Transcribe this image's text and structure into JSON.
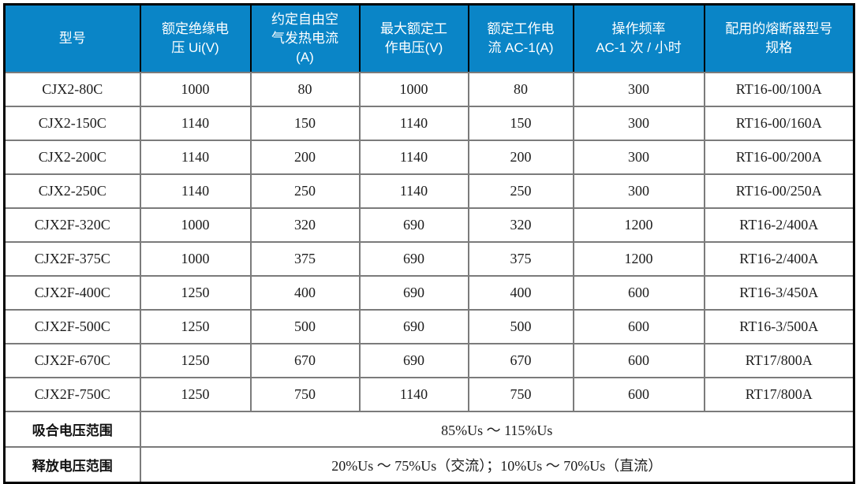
{
  "colors": {
    "header_bg": "#0a85c7",
    "header_text": "#ffffff",
    "body_text": "#1c1c1c",
    "grid_line": "#7b7b7b",
    "outer_border": "#000000"
  },
  "table": {
    "columns": [
      {
        "label": "型号"
      },
      {
        "label": "额定绝缘电\n压 Ui(V)"
      },
      {
        "label": "约定自由空\n气发热电流\n(A)"
      },
      {
        "label": "最大额定工\n作电压(V)"
      },
      {
        "label": "额定工作电\n流 AC-1(A)"
      },
      {
        "label": "操作频率\nAC-1 次 / 小时"
      },
      {
        "label": "配用的熔断器型号\n规格"
      }
    ],
    "rows": [
      {
        "model": "CJX2-80C",
        "values": [
          "1000",
          "80",
          "1000",
          "80",
          "300",
          "RT16-00/100A"
        ]
      },
      {
        "model": "CJX2-150C",
        "values": [
          "1140",
          "150",
          "1140",
          "150",
          "300",
          "RT16-00/160A"
        ]
      },
      {
        "model": "CJX2-200C",
        "values": [
          "1140",
          "200",
          "1140",
          "200",
          "300",
          "RT16-00/200A"
        ]
      },
      {
        "model": "CJX2-250C",
        "values": [
          "1140",
          "250",
          "1140",
          "250",
          "300",
          "RT16-00/250A"
        ]
      },
      {
        "model": "CJX2F-320C",
        "values": [
          "1000",
          "320",
          "690",
          "320",
          "1200",
          "RT16-2/400A"
        ]
      },
      {
        "model": "CJX2F-375C",
        "values": [
          "1000",
          "375",
          "690",
          "375",
          "1200",
          "RT16-2/400A"
        ]
      },
      {
        "model": "CJX2F-400C",
        "values": [
          "1250",
          "400",
          "690",
          "400",
          "600",
          "RT16-3/450A"
        ]
      },
      {
        "model": "CJX2F-500C",
        "values": [
          "1250",
          "500",
          "690",
          "500",
          "600",
          "RT16-3/500A"
        ]
      },
      {
        "model": "CJX2F-670C",
        "values": [
          "1250",
          "670",
          "690",
          "670",
          "600",
          "RT17/800A"
        ]
      },
      {
        "model": "CJX2F-750C",
        "values": [
          "1250",
          "750",
          "1140",
          "750",
          "600",
          "RT17/800A"
        ]
      }
    ],
    "footer_rows": [
      {
        "label": "吸合电压范围",
        "value": "85%Us ～ 115%Us"
      },
      {
        "label": "释放电压范围",
        "value": "20%Us ～ 75%Us（交流）；10%Us ～ 70%Us（直流）"
      }
    ]
  }
}
